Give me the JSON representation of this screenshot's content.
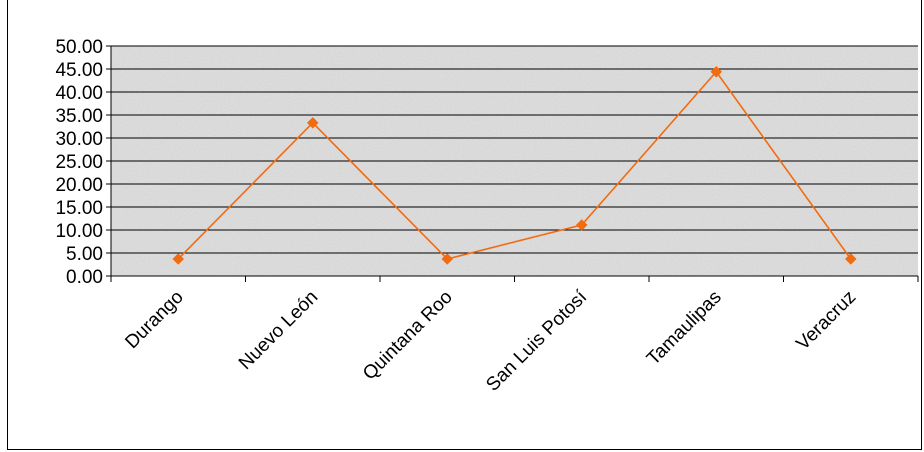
{
  "chart_data": {
    "type": "line",
    "title": "",
    "xlabel": "",
    "ylabel": "",
    "categories": [
      "Durango",
      "Nuevo León",
      "Quintana Roo",
      "San Luis Potosí",
      "Tamaulipas",
      "Veracruz"
    ],
    "series": [
      {
        "values": [
          3.7,
          33.3,
          3.7,
          11.1,
          44.4,
          3.7
        ]
      }
    ],
    "ylim": [
      0,
      50
    ],
    "y_ticks": [
      "0.00",
      "5.00",
      "10.00",
      "15.00",
      "20.00",
      "25.00",
      "30.00",
      "35.00",
      "40.00",
      "45.00",
      "50.00"
    ],
    "grid": true,
    "legend": "none",
    "colors": {
      "line": "#f26b10",
      "marker": "#f26b10",
      "plot_bg": "#e3e3e3",
      "grid": "#000000"
    }
  }
}
